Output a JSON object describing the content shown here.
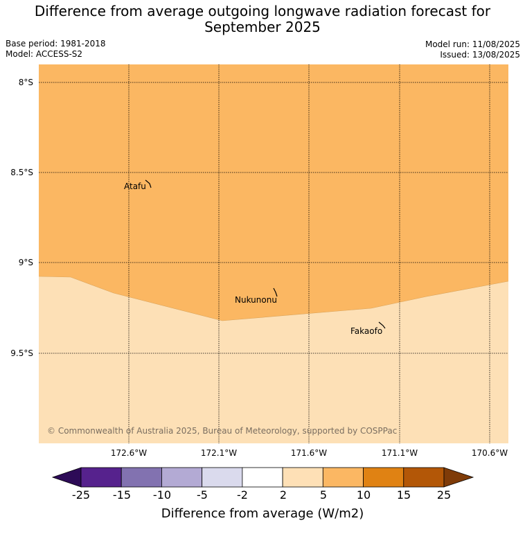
{
  "title_line1": "Difference from average outgoing longwave radiation forecast for",
  "title_line2": "September 2025",
  "base_period": "Base period: 1981-2018",
  "model": "Model: ACCESS-S2",
  "model_run": "Model run: 11/08/2025",
  "issued": "Issued: 13/08/2025",
  "lat_labels": [
    "8°S",
    "8.5°S",
    "9°S",
    "9.5°S"
  ],
  "lon_labels": [
    "172.6°W",
    "172.1°W",
    "171.6°W",
    "171.1°W",
    "170.6°W"
  ],
  "places": [
    "Atafu",
    "Nukunonu",
    "Fakaofo"
  ],
  "copyright": "© Commonwealth of Australia 2025, Bureau of Meteorology, supported by COSPPac",
  "colorbar": {
    "ticks": [
      "-25",
      "-15",
      "-10",
      "-5",
      "-2",
      "2",
      "5",
      "10",
      "15",
      "25"
    ],
    "label": "Difference from average (W/m2)",
    "colors": [
      "#2d0b57",
      "#56228d",
      "#8272b0",
      "#b3aad4",
      "#dadaed",
      "#ffffff",
      "#fee0b6",
      "#fbb763",
      "#e08213",
      "#b35707",
      "#7f3b08"
    ]
  },
  "regions": {
    "upper_color": "#fbb762",
    "lower_color": "#fde0b6"
  }
}
